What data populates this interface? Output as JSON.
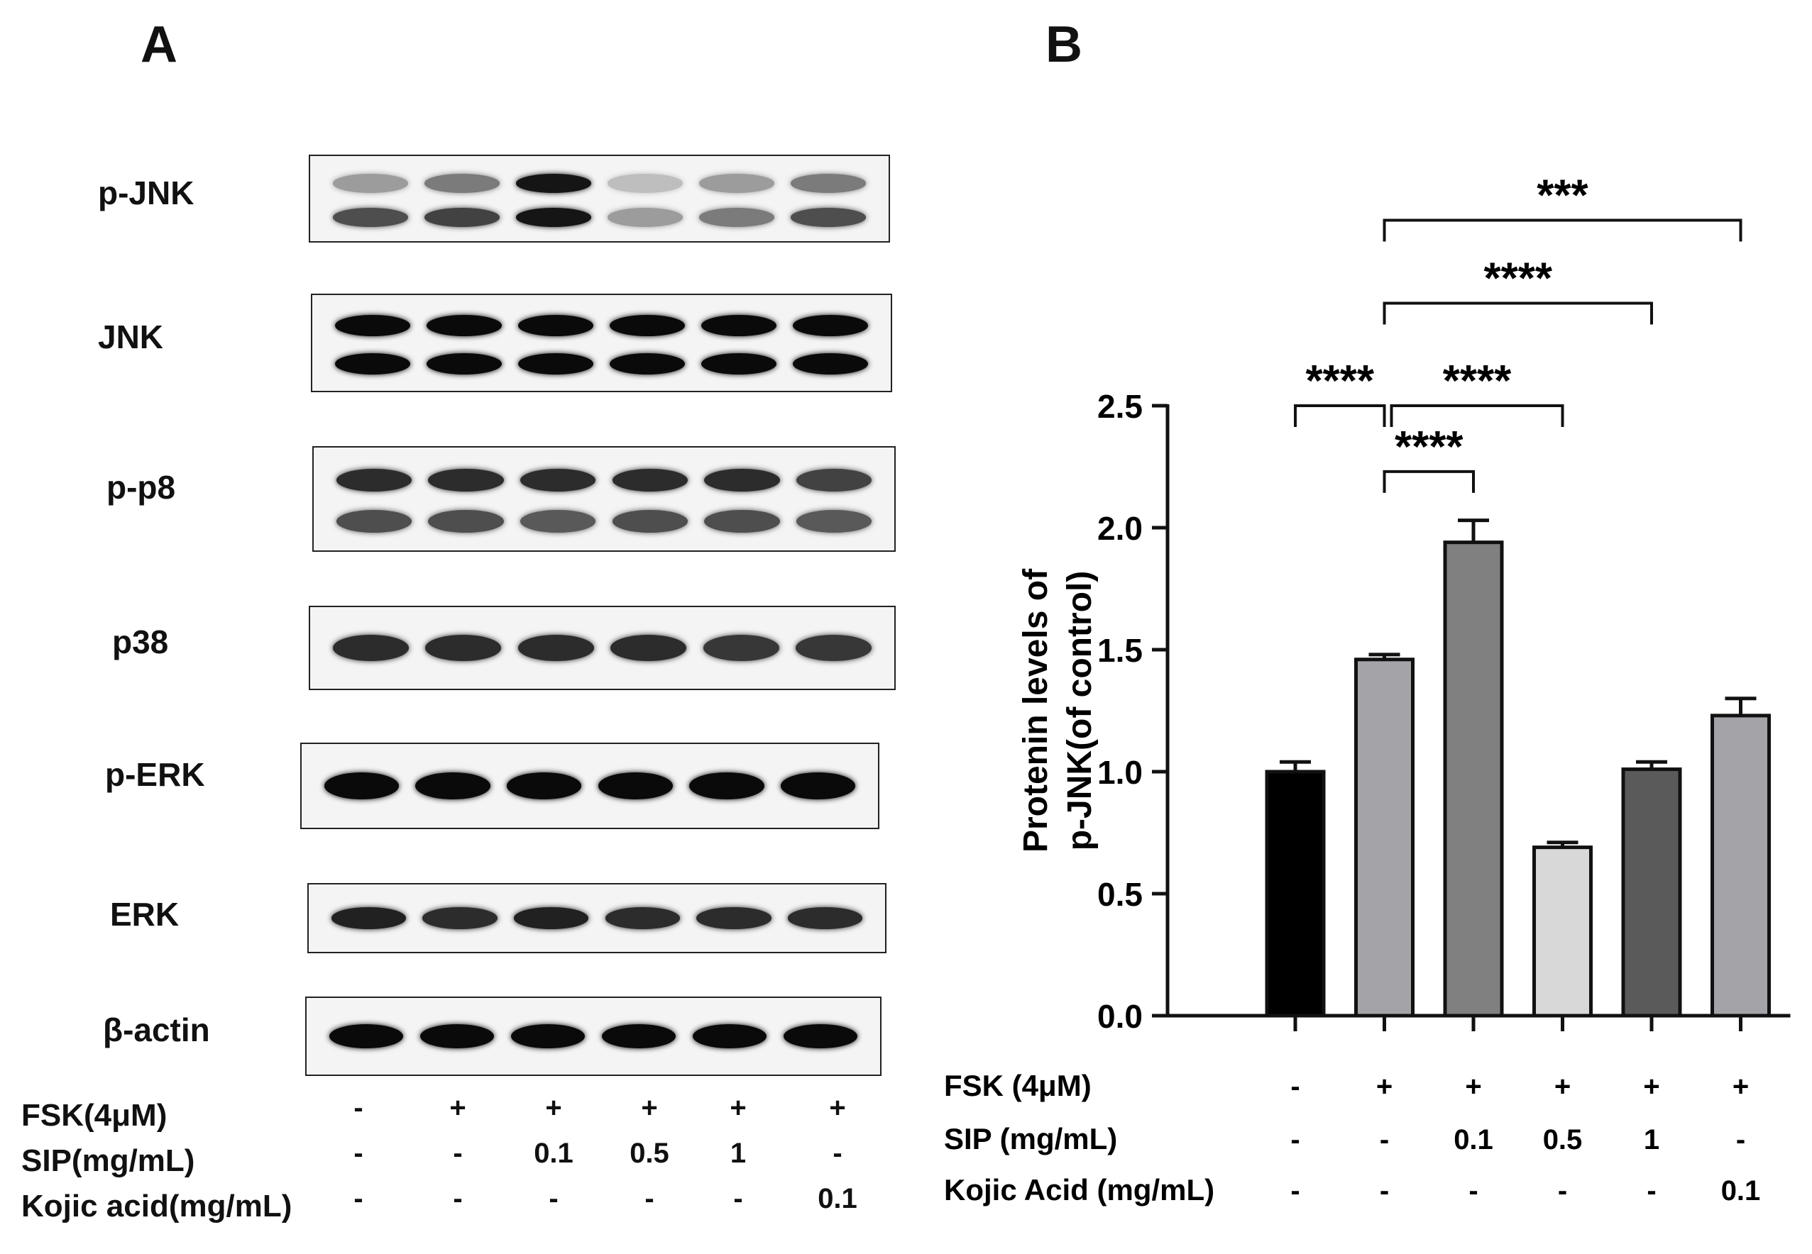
{
  "panels": {
    "a": "A",
    "b": "B"
  },
  "blot": {
    "rows": [
      {
        "label": "p-JNK",
        "intensity": [
          [
            0.35,
            0.7
          ],
          [
            0.5,
            0.75
          ],
          [
            0.95,
            0.95
          ],
          [
            0.2,
            0.35
          ],
          [
            0.35,
            0.5
          ],
          [
            0.5,
            0.7
          ]
        ]
      },
      {
        "label": "JNK",
        "intensity": [
          [
            1,
            1
          ],
          [
            1,
            1
          ],
          [
            1,
            1
          ],
          [
            1,
            1
          ],
          [
            1,
            1
          ],
          [
            1,
            1
          ]
        ]
      },
      {
        "label": "p-p8",
        "intensity": [
          [
            0.85,
            0.7
          ],
          [
            0.85,
            0.7
          ],
          [
            0.85,
            0.65
          ],
          [
            0.85,
            0.7
          ],
          [
            0.85,
            0.7
          ],
          [
            0.75,
            0.65
          ]
        ]
      },
      {
        "label": "p38",
        "intensity": [
          [
            0.85
          ],
          [
            0.85
          ],
          [
            0.85
          ],
          [
            0.85
          ],
          [
            0.8
          ],
          [
            0.8
          ]
        ]
      },
      {
        "label": "p-ERK",
        "intensity": [
          [
            1
          ],
          [
            1
          ],
          [
            1
          ],
          [
            1
          ],
          [
            1
          ],
          [
            1
          ]
        ]
      },
      {
        "label": "ERK",
        "intensity": [
          [
            0.9
          ],
          [
            0.85
          ],
          [
            0.9
          ],
          [
            0.85
          ],
          [
            0.85
          ],
          [
            0.85
          ]
        ]
      },
      {
        "label": "β-actin",
        "intensity": [
          [
            1
          ],
          [
            1
          ],
          [
            1
          ],
          [
            1
          ],
          [
            1
          ],
          [
            1
          ]
        ]
      }
    ],
    "conditions": [
      {
        "label": "FSK(4μM)",
        "values": [
          "-",
          "+",
          "+",
          "+",
          "+",
          "+"
        ]
      },
      {
        "label": "SIP(mg/mL)",
        "values": [
          "-",
          "-",
          "0.1",
          "0.5",
          "1",
          "-"
        ]
      },
      {
        "label": "Kojic acid(mg/mL)",
        "values": [
          "-",
          "-",
          "-",
          "-",
          "-",
          "0.1"
        ]
      }
    ]
  },
  "chart_data": {
    "type": "bar",
    "ylabel": [
      "Protenin levels of",
      "p-JNK(of control)"
    ],
    "ylim": [
      0,
      2.5
    ],
    "yticks": [
      "0.0",
      "0.5",
      "1.0",
      "1.5",
      "2.0",
      "2.5"
    ],
    "values": [
      1.0,
      1.46,
      1.94,
      0.69,
      1.01,
      1.23
    ],
    "errors": [
      0.04,
      0.02,
      0.09,
      0.02,
      0.03,
      0.07
    ],
    "colors": [
      "#000000",
      "#a3a3a8",
      "#808080",
      "#d8d8d8",
      "#5a5a5a",
      "#a3a3a8"
    ],
    "conditions": [
      {
        "label": "FSK (4μM)",
        "values": [
          "-",
          "+",
          "+",
          "+",
          "+",
          "+"
        ]
      },
      {
        "label": "SIP (mg/mL)",
        "values": [
          "-",
          "-",
          "0.1",
          "0.5",
          "1",
          "-"
        ]
      },
      {
        "label": "Kojic Acid (mg/mL)",
        "values": [
          "-",
          "-",
          "-",
          "-",
          "-",
          "0.1"
        ]
      }
    ],
    "significance": [
      {
        "from": 0,
        "to": 1,
        "label": "****",
        "y": 2.5
      },
      {
        "from": 1,
        "to": 2,
        "label": "****",
        "y": 2.23
      },
      {
        "from": 1,
        "to": 3,
        "label": "****",
        "y": 2.5
      },
      {
        "from": 1,
        "to": 4,
        "label": "****",
        "y": 2.92
      },
      {
        "from": 1,
        "to": 5,
        "label": "***",
        "y": 3.26
      }
    ]
  }
}
